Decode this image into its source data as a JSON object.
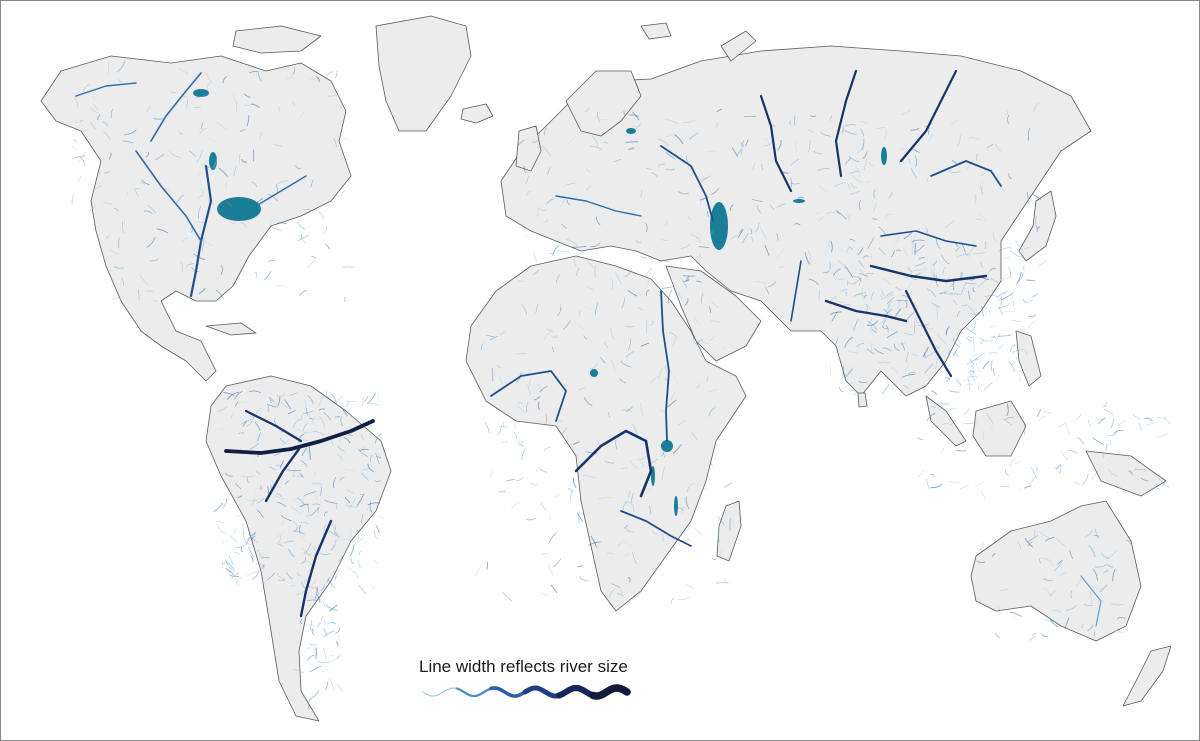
{
  "map": {
    "land_color": "#ececec",
    "coast_color": "#5a5a5a",
    "ocean_color": "#ffffff",
    "lake_color": "#1a7e97",
    "river_colors": [
      "#9cc8e3",
      "#5aa2cf",
      "#2b6cb0",
      "#1f4e8c",
      "#16336b",
      "#0f1f45"
    ]
  },
  "legend": {
    "title": "Line width reflects river size",
    "gradient": [
      "#8ec5e6",
      "#4a8fcd",
      "#2b5fa8",
      "#1f3f85",
      "#17275e",
      "#111a3a"
    ]
  }
}
